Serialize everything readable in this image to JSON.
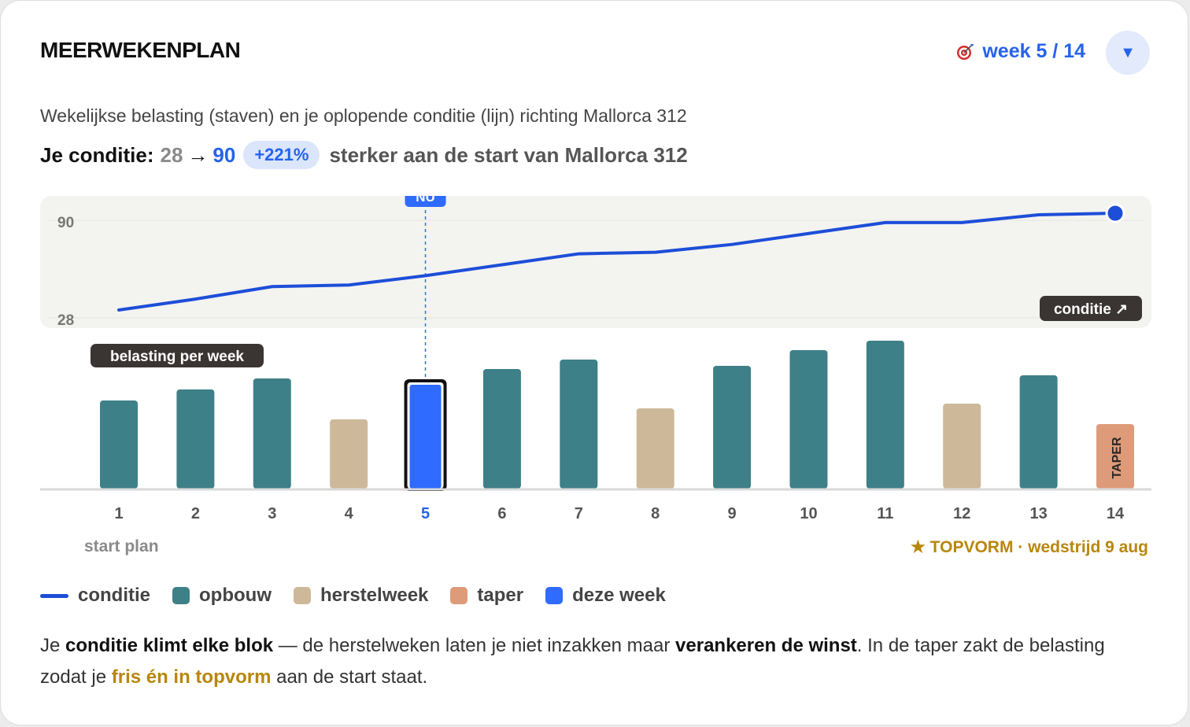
{
  "header": {
    "title": "MEERWEKENPLAN",
    "week_indicator": "week 5 / 14",
    "week_icon": "target-icon",
    "dropdown_glyph": "▼"
  },
  "subtitle": "Wekelijkse belasting (staven) en je oplopende conditie (lijn) richting Mallorca 312",
  "condition": {
    "label": "Je conditie:",
    "from": "28",
    "arrow": "→",
    "to": "90",
    "change": "+221%",
    "suffix": "sterker aan de start van Mallorca 312"
  },
  "chart_labels": {
    "now_badge": "NU",
    "condition_tag": "conditie ↗",
    "load_tag": "belasting per week",
    "taper_text": "TAPER",
    "start_plan": "start plan",
    "topvorm": "★ TOPVORM · wedstrijd 9 aug"
  },
  "chart_data": {
    "type": "bar",
    "categories": [
      "1",
      "2",
      "3",
      "4",
      "5",
      "6",
      "7",
      "8",
      "9",
      "10",
      "11",
      "12",
      "13",
      "14"
    ],
    "current_week": 5,
    "series": [
      {
        "name": "belasting per week",
        "values": [
          56,
          63,
          70,
          44,
          68,
          76,
          82,
          51,
          78,
          88,
          94,
          54,
          72,
          41
        ],
        "week_types": [
          "opbouw",
          "opbouw",
          "opbouw",
          "herstelweek",
          "deze week",
          "opbouw",
          "opbouw",
          "herstelweek",
          "opbouw",
          "opbouw",
          "opbouw",
          "herstelweek",
          "opbouw",
          "taper"
        ]
      },
      {
        "name": "conditie",
        "type": "line",
        "values": [
          28,
          35,
          43,
          44,
          50,
          57,
          64,
          65,
          70,
          77,
          84,
          84,
          89,
          90
        ]
      }
    ],
    "y_ticks_condition": [
      "90",
      "28"
    ],
    "ylim_condition": [
      28,
      90
    ]
  },
  "colors": {
    "opbouw": "#3e8087",
    "herstelweek": "#cdb99a",
    "taper": "#dd9b7a",
    "deze week": "#2f6bff",
    "conditie": "#1d4ed8",
    "gold": "#b8860b"
  },
  "legend": [
    {
      "key": "conditie",
      "label": "conditie"
    },
    {
      "key": "opbouw",
      "label": "opbouw"
    },
    {
      "key": "herstelweek",
      "label": "herstelweek"
    },
    {
      "key": "taper",
      "label": "taper"
    },
    {
      "key": "deze week",
      "label": "deze week"
    }
  ],
  "description": {
    "p1": "Je ",
    "b1": "conditie klimt elke blok",
    "p2": " — de herstelweken laten je niet inzakken maar ",
    "b2": "verankeren de winst",
    "p3": ". In de taper zakt de belasting zodat je ",
    "g1": "fris én in topvorm",
    "p4": " aan de start staat."
  }
}
